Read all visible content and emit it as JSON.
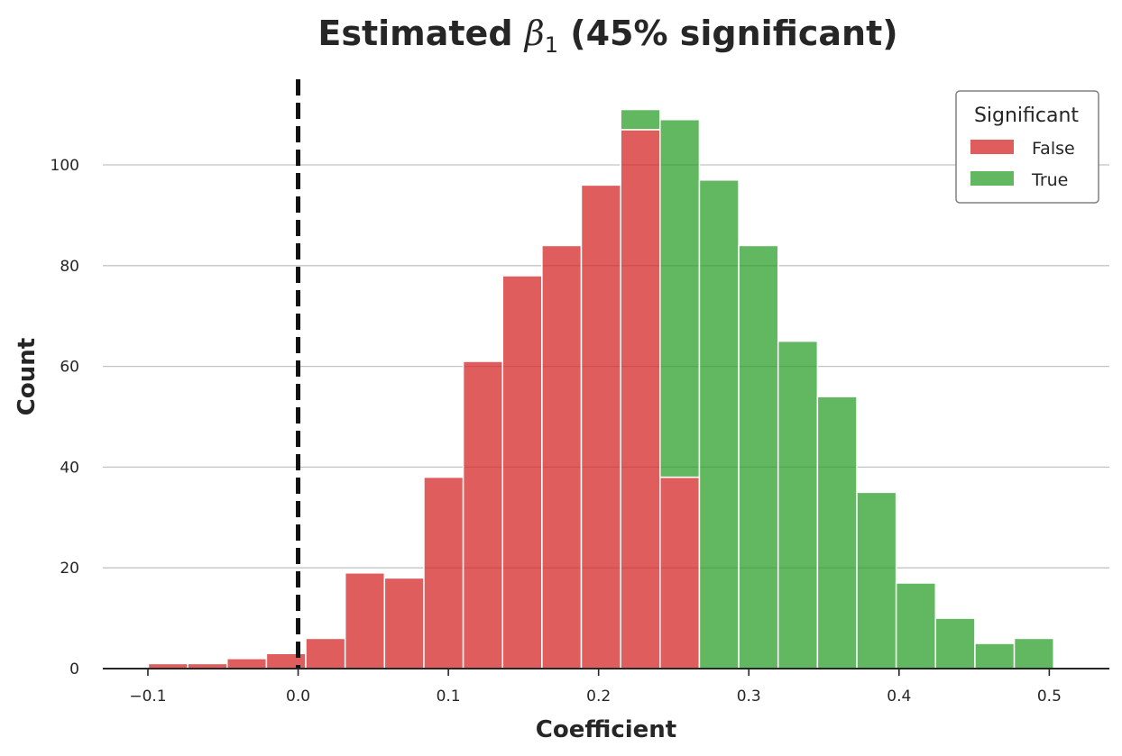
{
  "chart_data": {
    "type": "bar",
    "subtype": "stacked-histogram",
    "title_prefix": "Estimated ",
    "title_symbol": "β",
    "title_subscript": "1",
    "title_suffix": " (45% significant)",
    "xlabel": "Coefficient",
    "ylabel": "Count",
    "xlim": [
      -0.13,
      0.54
    ],
    "ylim": [
      0,
      117
    ],
    "x_ticks": [
      -0.1,
      0.0,
      0.1,
      0.2,
      0.3,
      0.4,
      0.5
    ],
    "x_tick_labels": [
      "−0.1",
      "0.0",
      "0.1",
      "0.2",
      "0.3",
      "0.4",
      "0.5"
    ],
    "y_ticks": [
      0,
      20,
      40,
      60,
      80,
      100
    ],
    "y_tick_labels": [
      "0",
      "20",
      "40",
      "60",
      "80",
      "100"
    ],
    "grid": "horizontal",
    "reference_line": {
      "x": 0.0,
      "style": "dashed",
      "color": "#111111"
    },
    "bin_edges": [
      -0.0997,
      -0.0735,
      -0.0473,
      -0.0211,
      0.0051,
      0.0313,
      0.0575,
      0.0837,
      0.1099,
      0.1361,
      0.1623,
      0.1885,
      0.2147,
      0.2409,
      0.2671,
      0.2933,
      0.3195,
      0.3457,
      0.3719,
      0.3981,
      0.4243,
      0.4505,
      0.4767,
      0.5029
    ],
    "series": [
      {
        "name": "False",
        "color": "#d62728",
        "values": [
          1,
          1,
          2,
          3,
          6,
          19,
          18,
          38,
          61,
          78,
          84,
          96,
          107,
          38,
          0,
          0,
          0,
          0,
          0,
          0,
          0,
          0,
          0
        ]
      },
      {
        "name": "True",
        "color": "#2ca02c",
        "values": [
          0,
          0,
          0,
          0,
          0,
          0,
          0,
          0,
          0,
          0,
          0,
          0,
          4,
          71,
          97,
          84,
          65,
          54,
          35,
          17,
          10,
          5,
          6
        ]
      }
    ],
    "legend": {
      "title": "Significant",
      "position": "top-right"
    }
  }
}
